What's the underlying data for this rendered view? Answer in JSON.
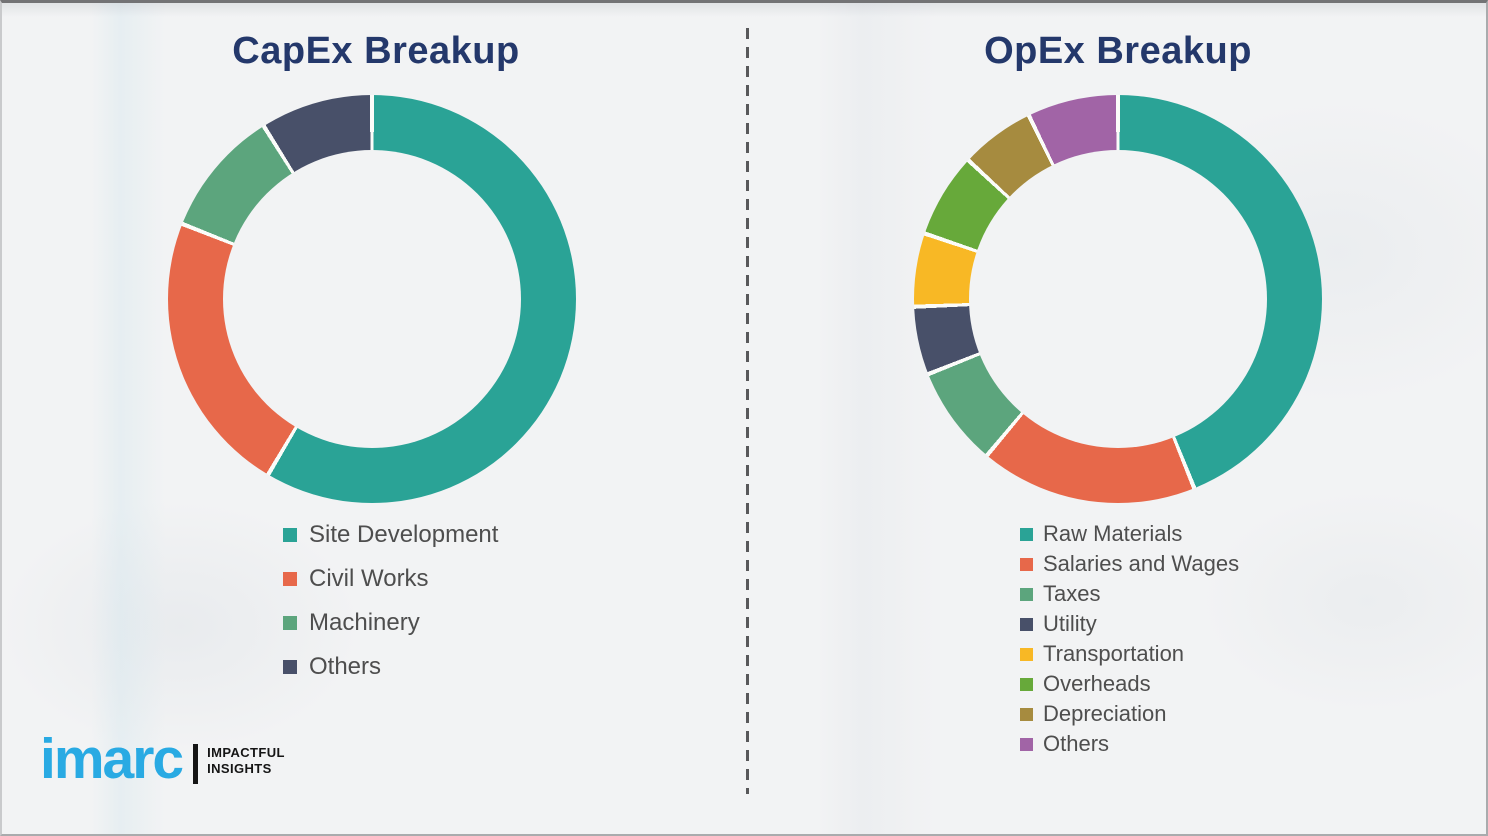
{
  "page": {
    "background": "#f2f3f4",
    "divider_color": "#58585a",
    "slice_gap_color": "#fbfcf9"
  },
  "chart_data": [
    {
      "type": "pie",
      "subtype": "donut",
      "title": "CapEx Breakup",
      "labels": [
        "Site Development",
        "Civil Works",
        "Machinery",
        "Others"
      ],
      "values": [
        58.5,
        22.5,
        10.1,
        8.9
      ],
      "colors": [
        "#2aa396",
        "#e7684a",
        "#5ca57d",
        "#485069"
      ],
      "start_angle_deg": 0,
      "direction": "clockwise",
      "values_estimated": true,
      "legend_position": "below-left",
      "legend": [
        {
          "label": "Site Development",
          "color": "#2aa396"
        },
        {
          "label": "Civil Works",
          "color": "#e7684a"
        },
        {
          "label": "Machinery",
          "color": "#5ca57d"
        },
        {
          "label": "Others",
          "color": "#485069"
        }
      ]
    },
    {
      "type": "pie",
      "subtype": "donut",
      "title": "OpEx Breakup",
      "labels": [
        "Raw Materials",
        "Salaries and Wages",
        "Taxes",
        "Utility",
        "Transportation",
        "Overheads",
        "Depreciation",
        "Others"
      ],
      "values": [
        43.9,
        17.2,
        7.9,
        5.4,
        5.8,
        6.7,
        5.9,
        7.2
      ],
      "colors": [
        "#2aa396",
        "#e7684a",
        "#5ca57d",
        "#485069",
        "#f8b825",
        "#67a93a",
        "#a68b3f",
        "#a164a6"
      ],
      "start_angle_deg": 0,
      "direction": "clockwise",
      "values_estimated": true,
      "legend_position": "below-left",
      "legend": [
        {
          "label": "Raw Materials",
          "color": "#2aa396"
        },
        {
          "label": "Salaries and Wages",
          "color": "#e7684a"
        },
        {
          "label": "Taxes",
          "color": "#5ca57d"
        },
        {
          "label": "Utility",
          "color": "#485069"
        },
        {
          "label": "Transportation",
          "color": "#f8b825"
        },
        {
          "label": "Overheads",
          "color": "#67a93a"
        },
        {
          "label": "Depreciation",
          "color": "#a68b3f"
        },
        {
          "label": "Others",
          "color": "#a164a6"
        }
      ]
    }
  ],
  "branding": {
    "logo_text": "imarc",
    "logo_color": "#29aae3",
    "tagline_line1": "IMPACTFUL",
    "tagline_line2": "INSIGHTS"
  }
}
